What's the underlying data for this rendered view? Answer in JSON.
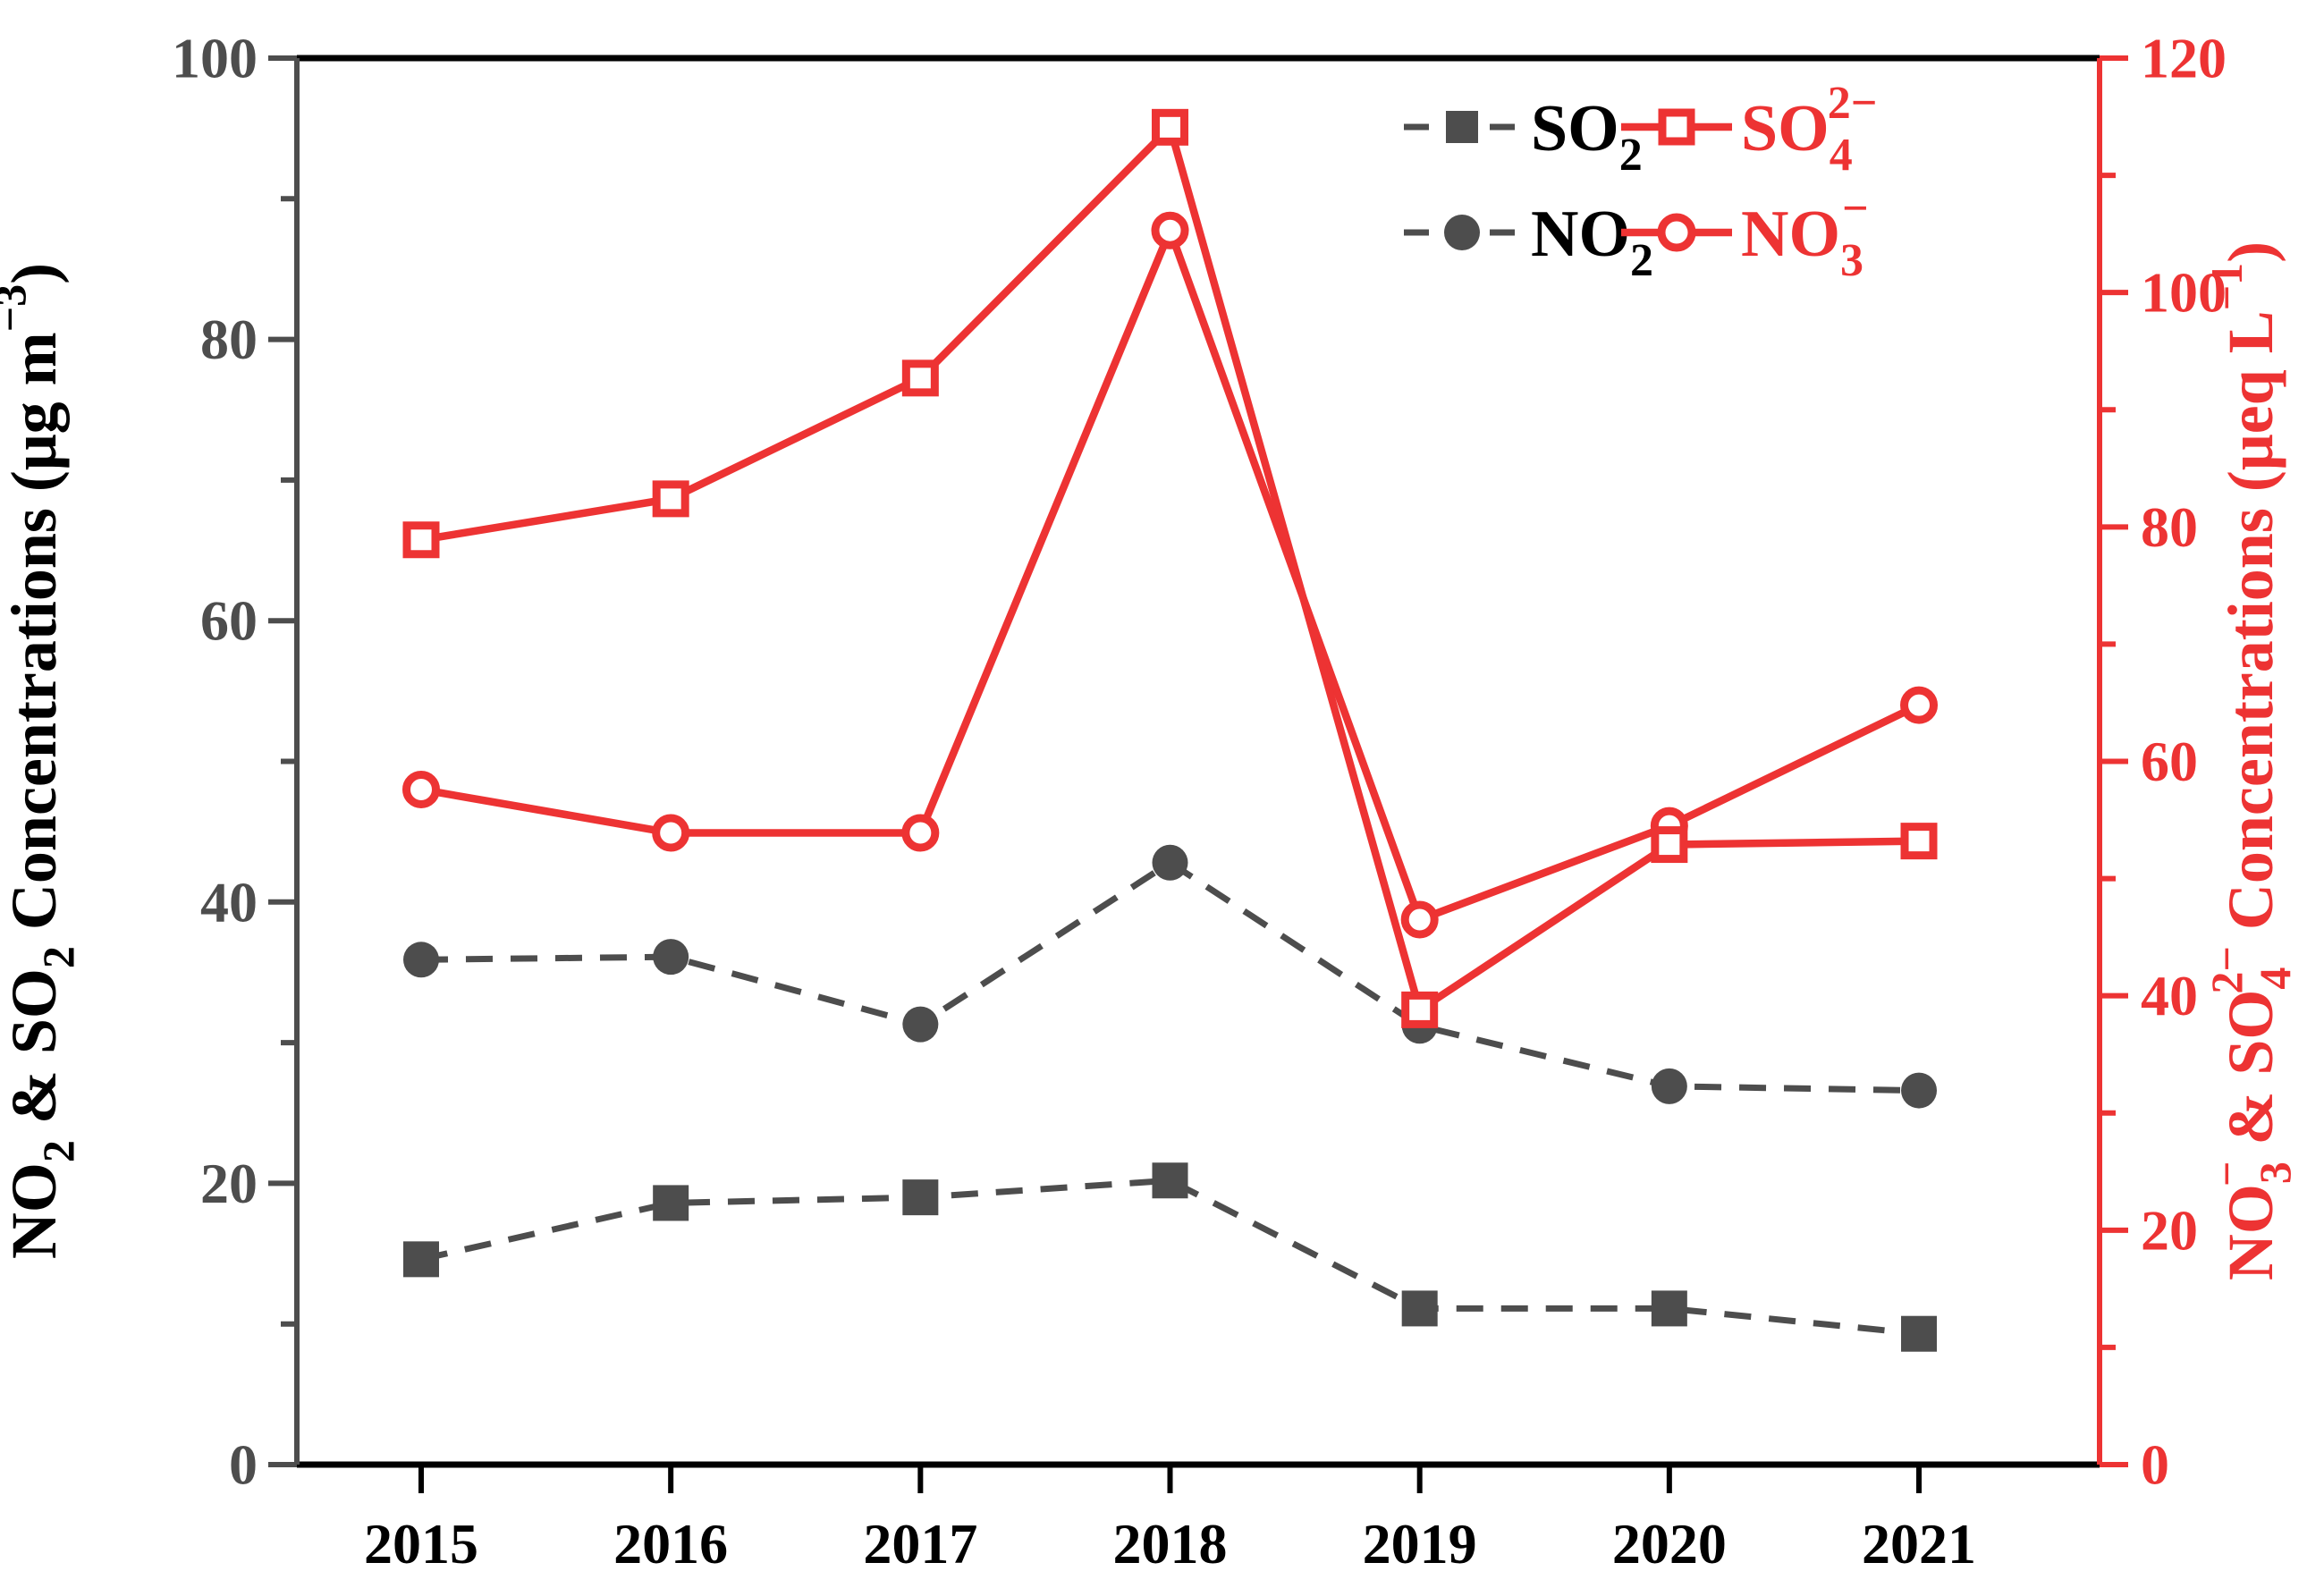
{
  "figure": {
    "background": "#ffffff",
    "accent_red": "#ED3333",
    "accent_gray": "#4D4D4D",
    "spine_black": "#000000"
  },
  "axes": {
    "x": {
      "ticks": [
        "2015",
        "2016",
        "2017",
        "2018",
        "2019",
        "2020",
        "2021"
      ]
    },
    "left": {
      "title_parts": {
        "p1": "NO",
        "p2": "2",
        "p3": " & SO",
        "p4": "2",
        "p5": " Concentrations (μg m",
        "p6": "−3",
        "p7": ")"
      },
      "ticks": [
        "0",
        "20",
        "40",
        "60",
        "80",
        "100"
      ]
    },
    "right": {
      "title_parts": {
        "p1": "NO",
        "p2": "3",
        "p3": "−",
        "p4": " & SO",
        "p5": "4",
        "p6": "2−",
        "p7": " Concentrations (μeq L",
        "p8": "−1",
        "p9": ")"
      },
      "ticks": [
        "0",
        "20",
        "40",
        "60",
        "80",
        "100",
        "120"
      ]
    }
  },
  "legend": {
    "so2": {
      "base": "SO",
      "sub": "2"
    },
    "so4": {
      "base": "SO",
      "sub": "4",
      "sup": "2−"
    },
    "no2": {
      "base": "NO",
      "sub": "2"
    },
    "no3": {
      "base": "NO",
      "sub": "3",
      "sup": "−"
    }
  },
  "chart_data": {
    "type": "line",
    "x": [
      2015,
      2016,
      2017,
      2018,
      2019,
      2020,
      2021
    ],
    "series": [
      {
        "name": "SO₂",
        "axis": "left",
        "color": "#4D4D4D",
        "linestyle": "dashed",
        "marker": "square-filled",
        "values": [
          14.6,
          18.6,
          19.0,
          20.2,
          11.1,
          11.1,
          9.3
        ]
      },
      {
        "name": "NO₂",
        "axis": "left",
        "color": "#4D4D4D",
        "linestyle": "dashed",
        "marker": "circle-filled",
        "values": [
          35.9,
          36.1,
          31.3,
          42.8,
          31.2,
          26.9,
          26.6
        ]
      },
      {
        "name": "NO₃⁻",
        "axis": "right",
        "color": "#ED3333",
        "linestyle": "solid",
        "marker": "circle-open",
        "values": [
          57.6,
          53.9,
          53.9,
          105.3,
          46.5,
          54.5,
          64.8
        ]
      },
      {
        "name": "SO₄²⁻",
        "axis": "right",
        "color": "#ED3333",
        "linestyle": "solid",
        "marker": "square-open",
        "values": [
          78.9,
          82.4,
          92.7,
          114.1,
          38.8,
          52.9,
          53.2
        ]
      }
    ],
    "left_ylabel": "NO₂ & SO₂ Concentrations (μg m⁻³)",
    "right_ylabel": "NO₃⁻ & SO₄²⁻ Concentrations (μeq L⁻¹)",
    "xlabel": "",
    "left_ylim": [
      0,
      100
    ],
    "right_ylim": [
      0,
      120
    ],
    "left_tick_step": 20,
    "right_tick_step": 20,
    "minor_tick_step": 10,
    "grid": false,
    "legend_position": "top-right-inside"
  }
}
